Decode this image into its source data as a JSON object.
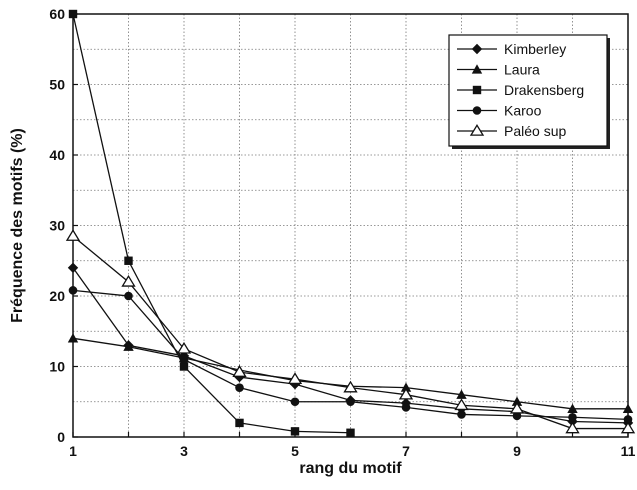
{
  "chart_data": {
    "type": "line",
    "title": "",
    "xlabel": "rang du motif",
    "ylabel": "Fréquence des motifs (%)",
    "xlim": [
      1,
      11
    ],
    "ylim": [
      0,
      60
    ],
    "xticks": [
      1,
      3,
      5,
      7,
      9,
      11
    ],
    "yticks": [
      0,
      10,
      20,
      30,
      40,
      50,
      60
    ],
    "grid": true,
    "legend_position": "top-right",
    "series": [
      {
        "name": "Kimberley",
        "marker": "diamond-filled",
        "color": "#111111",
        "x": [
          1,
          2,
          3,
          4,
          5,
          6,
          7,
          8,
          9,
          10,
          11
        ],
        "y": [
          24,
          13,
          11.5,
          8.5,
          7.5,
          5.2,
          4.8,
          4,
          3.6,
          2.2,
          2
        ]
      },
      {
        "name": "Laura",
        "marker": "triangle-filled",
        "color": "#111111",
        "x": [
          1,
          2,
          3,
          4,
          5,
          6,
          7,
          8,
          9,
          10,
          11
        ],
        "y": [
          14,
          12.8,
          11.2,
          9.5,
          8,
          7.2,
          7,
          6,
          5,
          4,
          4
        ]
      },
      {
        "name": "Drakensberg",
        "marker": "square-filled",
        "color": "#111111",
        "x": [
          1,
          2,
          3,
          4,
          5,
          6
        ],
        "y": [
          60,
          25,
          10,
          2,
          0.8,
          0.6
        ]
      },
      {
        "name": "Karoo",
        "marker": "circle-filled",
        "color": "#111111",
        "x": [
          1,
          2,
          3,
          4,
          5,
          6,
          7,
          8,
          9,
          10,
          11
        ],
        "y": [
          20.8,
          20,
          11,
          7,
          5,
          5,
          4.2,
          3.2,
          3,
          2.8,
          2.5
        ]
      },
      {
        "name": "Paléo sup",
        "marker": "triangle-open",
        "color": "#111111",
        "x": [
          1,
          2,
          3,
          4,
          5,
          6,
          7,
          8,
          9,
          10,
          11
        ],
        "y": [
          28.5,
          22,
          12.5,
          9.2,
          8.2,
          7,
          6,
          4.5,
          4,
          1.2,
          1.2
        ]
      }
    ]
  }
}
